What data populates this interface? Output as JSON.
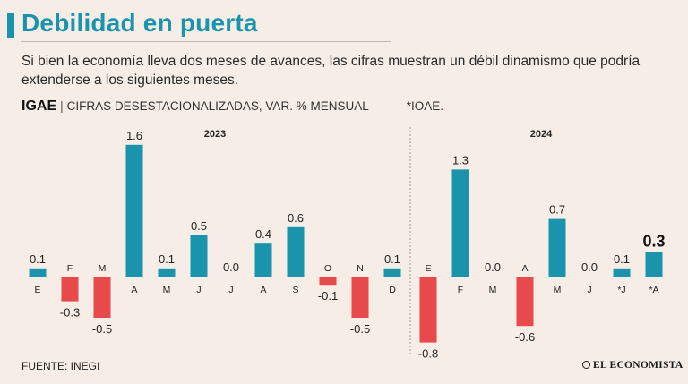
{
  "header": {
    "title": "Debilidad en puerta",
    "subtitle": "Si bien la economía lleva dos meses de avances, las cifras muestran un débil dinamismo que podría extenderse a los siguientes meses.",
    "series_name": "IGAE",
    "series_desc": "CIFRAS DESESTACIONALIZADAS, VAR. % MENSUAL",
    "note": "*IOAE."
  },
  "footer": {
    "source": "FUENTE: INEGI",
    "logo": "EL ECONOMISTA"
  },
  "colors": {
    "positive": "#1a93ad",
    "negative": "#e8494a",
    "accent": "#1a93ad",
    "title": "#1a93ad"
  },
  "chart_data": {
    "type": "bar",
    "title": "IGAE",
    "ylabel": "Var. % mensual",
    "xlabel": "",
    "ylim": [
      -0.8,
      1.6
    ],
    "groups": [
      {
        "year": "2023",
        "categories": [
          "E",
          "F",
          "M",
          "A",
          "M",
          "J",
          "J",
          "A",
          "S",
          "O",
          "N",
          "D"
        ],
        "values": [
          0.1,
          -0.3,
          -0.5,
          1.6,
          0.1,
          0.5,
          0.0,
          0.4,
          0.6,
          -0.1,
          -0.5,
          0.1
        ]
      },
      {
        "year": "2024",
        "categories": [
          "E",
          "F",
          "M",
          "A",
          "M",
          "J",
          "*J",
          "*A"
        ],
        "values": [
          -0.8,
          1.3,
          0.0,
          -0.6,
          0.7,
          0.0,
          0.1,
          0.3
        ]
      }
    ],
    "highlight_last": true
  }
}
